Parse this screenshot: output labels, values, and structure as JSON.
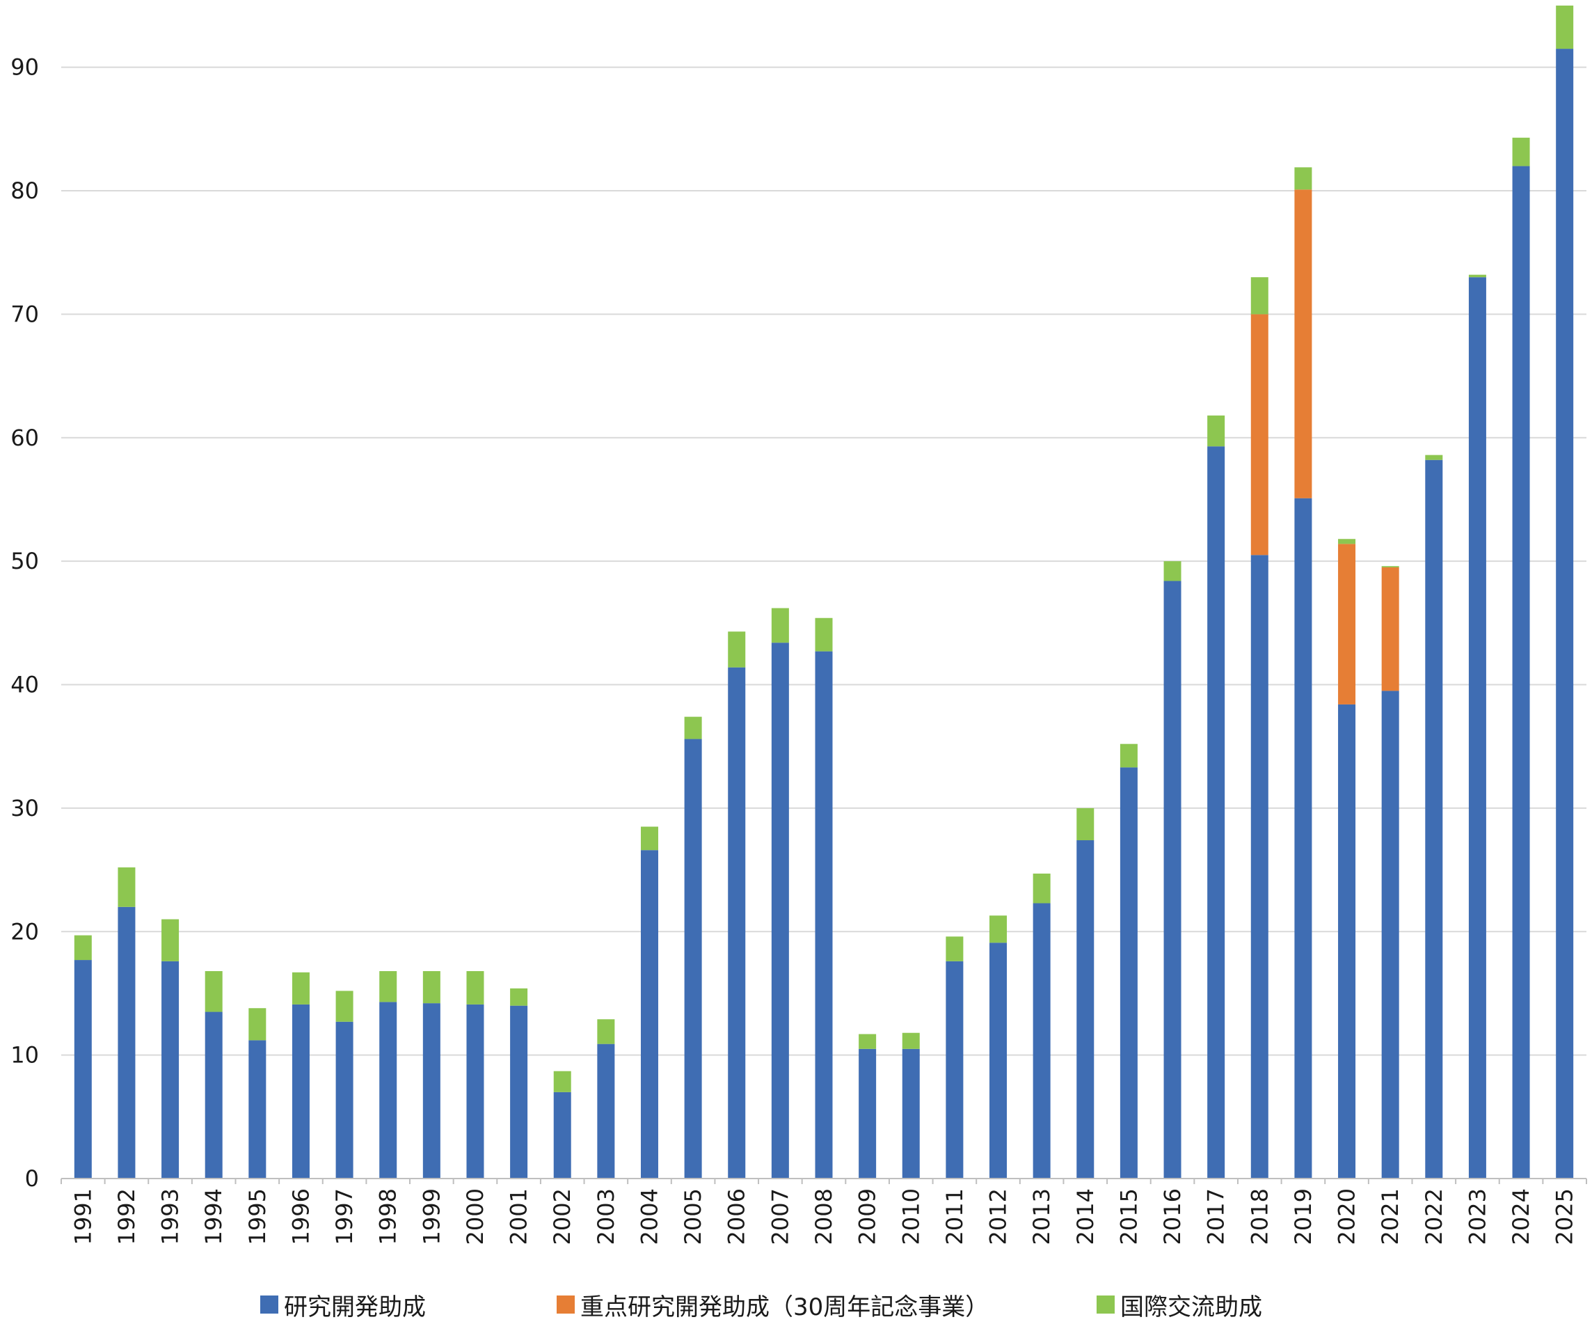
{
  "chart_data": {
    "type": "bar",
    "stacked": true,
    "title": "",
    "xlabel": "",
    "ylabel": "",
    "ylim": [
      0,
      95
    ],
    "y_ticks": [
      0,
      10,
      20,
      30,
      40,
      50,
      60,
      70,
      80,
      90
    ],
    "grid": true,
    "legend_position": "bottom",
    "categories": [
      "1991",
      "1992",
      "1993",
      "1994",
      "1995",
      "1996",
      "1997",
      "1998",
      "1999",
      "2000",
      "2001",
      "2002",
      "2003",
      "2004",
      "2005",
      "2006",
      "2007",
      "2008",
      "2009",
      "2010",
      "2011",
      "2012",
      "2013",
      "2014",
      "2015",
      "2016",
      "2017",
      "2018",
      "2019",
      "2020",
      "2021",
      "2022",
      "2023",
      "2024",
      "2025"
    ],
    "series": [
      {
        "name": "研究開発助成",
        "color": "#3f6db3",
        "values": [
          17.7,
          22.0,
          17.6,
          13.5,
          11.2,
          14.1,
          12.7,
          14.3,
          14.2,
          14.1,
          14.0,
          7.0,
          10.9,
          26.6,
          35.6,
          41.4,
          43.4,
          42.7,
          10.5,
          10.5,
          17.6,
          19.1,
          22.3,
          27.4,
          33.3,
          48.4,
          59.3,
          50.5,
          55.1,
          38.4,
          39.5,
          58.2,
          73.0,
          82.0,
          91.5
        ]
      },
      {
        "name": "重点研究開発助成（30周年記念事業）",
        "color": "#e67e35",
        "values": [
          0,
          0,
          0,
          0,
          0,
          0,
          0,
          0,
          0,
          0,
          0,
          0,
          0,
          0,
          0,
          0,
          0,
          0,
          0,
          0,
          0,
          0,
          0,
          0,
          0,
          0,
          0,
          19.5,
          25.0,
          13.0,
          10.0,
          0,
          0,
          0,
          0
        ]
      },
      {
        "name": "国際交流助成",
        "color": "#8dc650",
        "values": [
          2.0,
          3.2,
          3.4,
          3.3,
          2.6,
          2.6,
          2.5,
          2.5,
          2.6,
          2.7,
          1.4,
          1.7,
          2.0,
          1.9,
          1.8,
          2.9,
          2.8,
          2.7,
          1.2,
          1.3,
          2.0,
          2.2,
          2.4,
          2.6,
          1.9,
          1.6,
          2.5,
          3.0,
          1.8,
          0.4,
          0.1,
          0.4,
          0.2,
          2.3,
          3.5
        ]
      }
    ]
  }
}
